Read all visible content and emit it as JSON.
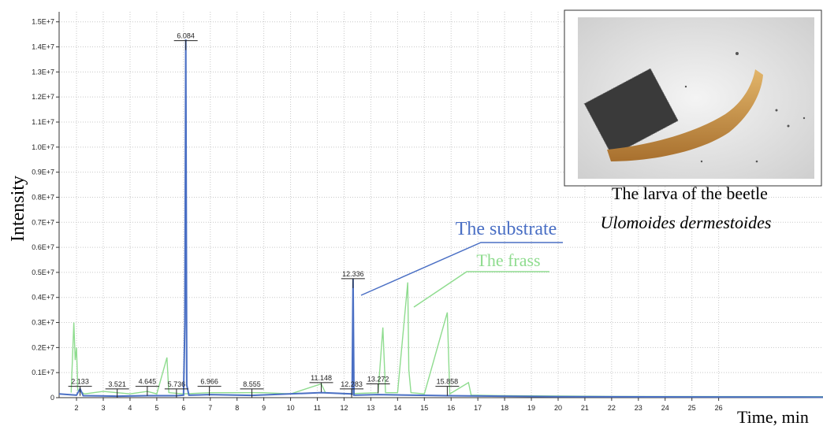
{
  "chart_data": {
    "type": "line",
    "x_label": "Time, min",
    "y_label": "Intensity",
    "xlim": [
      1.35,
      29.9
    ],
    "ylim": [
      0,
      15400000
    ],
    "xticks": [
      2,
      3,
      4,
      5,
      6,
      7,
      8,
      9,
      10,
      11,
      12,
      13,
      14,
      15,
      16,
      17,
      18,
      19,
      20,
      21,
      22,
      23,
      24,
      25,
      26
    ],
    "yticks": [
      0,
      {
        "value": 1000000,
        "label": "0.1E+7"
      },
      {
        "value": 2000000,
        "label": "0.2E+7"
      },
      {
        "value": 3000000,
        "label": "0.3E+7"
      },
      {
        "value": 4000000,
        "label": "0.4E+7"
      },
      {
        "value": 5000000,
        "label": "0.5E+7"
      },
      {
        "value": 6000000,
        "label": "0.6E+7"
      },
      {
        "value": 7000000,
        "label": "0.7E+7"
      },
      {
        "value": 8000000,
        "label": "0.8E+7"
      },
      {
        "value": 9000000,
        "label": "0.9E+7"
      },
      {
        "value": 10000000,
        "label": "1.0E+7"
      },
      {
        "value": 11000000,
        "label": "1.1E+7"
      },
      {
        "value": 12000000,
        "label": "1.2E+7"
      },
      {
        "value": 13000000,
        "label": "1.3E+7"
      },
      {
        "value": 14000000,
        "label": "1.4E+7"
      },
      {
        "value": 15000000,
        "label": "1.5E+7"
      }
    ],
    "grid": true,
    "series": [
      {
        "name": "The substrate",
        "color": "#4a6fc4",
        "x": [
          1.35,
          2.0,
          2.133,
          2.25,
          3.521,
          4.645,
          5.736,
          6.0,
          6.05,
          6.084,
          6.12,
          6.2,
          6.966,
          8.555,
          11.148,
          12.283,
          12.3,
          12.336,
          12.37,
          13.272,
          15.858,
          20,
          29.9
        ],
        "values": [
          150000,
          100000,
          350000,
          80000,
          60000,
          80000,
          80000,
          100000,
          3000000,
          14300000,
          500000,
          100000,
          120000,
          90000,
          200000,
          150000,
          100000,
          4750000,
          100000,
          120000,
          80000,
          40000,
          20000
        ]
      },
      {
        "name": "The frass",
        "color": "#8fdc8f",
        "x": [
          1.8,
          1.9,
          1.95,
          2.0,
          2.05,
          2.3,
          3,
          3.521,
          4.0,
          4.645,
          5.0,
          5.38,
          5.45,
          6.0,
          6.966,
          8,
          9,
          10,
          11.148,
          11.3,
          12,
          13.272,
          13.45,
          13.55,
          14.0,
          14.38,
          14.42,
          14.5,
          15.0,
          15.858,
          15.95,
          16.65,
          16.75,
          18,
          22,
          29.9
        ],
        "values": [
          200000,
          3000000,
          1500000,
          2000000,
          300000,
          150000,
          250000,
          200000,
          150000,
          250000,
          150000,
          1600000,
          200000,
          150000,
          200000,
          200000,
          200000,
          150000,
          550000,
          200000,
          150000,
          200000,
          2800000,
          200000,
          200000,
          4600000,
          1100000,
          200000,
          150000,
          3400000,
          150000,
          600000,
          100000,
          80000,
          50000,
          40000
        ]
      }
    ],
    "peak_labels": [
      {
        "x": 2.133,
        "y": 450000
      },
      {
        "x": 3.521,
        "y": 350000
      },
      {
        "x": 4.645,
        "y": 450000
      },
      {
        "x": 5.736,
        "y": 350000
      },
      {
        "x": 6.084,
        "y": 14250000
      },
      {
        "x": 6.966,
        "y": 450000
      },
      {
        "x": 8.555,
        "y": 350000
      },
      {
        "x": 11.148,
        "y": 600000
      },
      {
        "x": 12.283,
        "y": 350000
      },
      {
        "x": 12.336,
        "y": 4750000
      },
      {
        "x": 13.272,
        "y": 550000
      },
      {
        "x": 15.858,
        "y": 450000
      }
    ]
  },
  "inset": {
    "caption": [
      "The larva of the beetle",
      "Ulomoides dermestoides"
    ]
  }
}
